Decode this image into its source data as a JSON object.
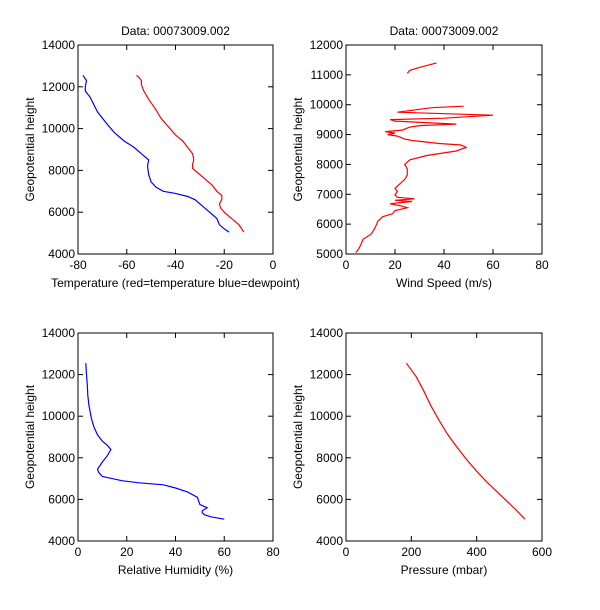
{
  "chart_data": [
    {
      "type": "line",
      "title": "Data: 00073009.002",
      "xlabel": "Temperature (red=temperature blue=dewpoint)",
      "ylabel": "Geopotential height",
      "xlim": [
        -80,
        0
      ],
      "ylim": [
        4000,
        14000
      ],
      "xticks": [
        -80,
        -60,
        -40,
        -20,
        0
      ],
      "yticks": [
        4000,
        6000,
        8000,
        10000,
        12000,
        14000
      ],
      "xtick_labels": [
        "-80",
        "-60",
        "-40",
        "-20",
        "0"
      ],
      "ytick_labels": [
        "4000",
        "6000",
        "8000",
        "10000",
        "12000",
        "14000"
      ],
      "series": [
        {
          "name": "temperature",
          "color": "#ff0000",
          "points": [
            [
              -12,
              5050
            ],
            [
              -12.5,
              5150
            ],
            [
              -14,
              5400
            ],
            [
              -16,
              5600
            ],
            [
              -18,
              5800
            ],
            [
              -20,
              6000
            ],
            [
              -21.5,
              6200
            ],
            [
              -22,
              6400
            ],
            [
              -21,
              6600
            ],
            [
              -21,
              6800
            ],
            [
              -23,
              7000
            ],
            [
              -25,
              7300
            ],
            [
              -28,
              7600
            ],
            [
              -31,
              7900
            ],
            [
              -33,
              8100
            ],
            [
              -33,
              8300
            ],
            [
              -32.5,
              8500
            ],
            [
              -33,
              8800
            ],
            [
              -35,
              9100
            ],
            [
              -37,
              9400
            ],
            [
              -40,
              9700
            ],
            [
              -43,
              10100
            ],
            [
              -46,
              10500
            ],
            [
              -48,
              10900
            ],
            [
              -51,
              11400
            ],
            [
              -53,
              11800
            ],
            [
              -54,
              12100
            ],
            [
              -54,
              12300
            ],
            [
              -55,
              12450
            ],
            [
              -56,
              12550
            ]
          ]
        },
        {
          "name": "dewpoint",
          "color": "#0000ff",
          "points": [
            [
              -18,
              5050
            ],
            [
              -20,
              5200
            ],
            [
              -22,
              5400
            ],
            [
              -23,
              5700
            ],
            [
              -26,
              6000
            ],
            [
              -29,
              6300
            ],
            [
              -32,
              6600
            ],
            [
              -35,
              6750
            ],
            [
              -40,
              6900
            ],
            [
              -45,
              7000
            ],
            [
              -48,
              7200
            ],
            [
              -50,
              7450
            ],
            [
              -51,
              7800
            ],
            [
              -51.5,
              8200
            ],
            [
              -51,
              8500
            ],
            [
              -53,
              8700
            ],
            [
              -57,
              9100
            ],
            [
              -61,
              9400
            ],
            [
              -65,
              9800
            ],
            [
              -68,
              10200
            ],
            [
              -72,
              10800
            ],
            [
              -75,
              11500
            ],
            [
              -77,
              11800
            ],
            [
              -77,
              12000
            ],
            [
              -76.5,
              12300
            ],
            [
              -78,
              12550
            ]
          ]
        }
      ]
    },
    {
      "type": "line",
      "title": "Data: 00073009.002",
      "xlabel": "Wind Speed (m/s)",
      "ylabel": "Geopotential height",
      "xlim": [
        0,
        80
      ],
      "ylim": [
        5000,
        12000
      ],
      "xticks": [
        0,
        20,
        40,
        60,
        80
      ],
      "yticks": [
        5000,
        6000,
        7000,
        8000,
        9000,
        10000,
        11000,
        12000
      ],
      "xtick_labels": [
        "0",
        "20",
        "40",
        "60",
        "80"
      ],
      "ytick_labels": [
        "5000",
        "6000",
        "7000",
        "8000",
        "9000",
        "10000",
        "11000",
        "12000"
      ],
      "series": [
        {
          "name": "wind speed",
          "color": "#ff0000",
          "points": [
            [
              4,
              5050
            ],
            [
              5,
              5150
            ],
            [
              6,
              5300
            ],
            [
              7,
              5500
            ],
            [
              10,
              5650
            ],
            [
              11,
              5750
            ],
            [
              12,
              5900
            ],
            [
              13,
              6100
            ],
            [
              15,
              6250
            ],
            [
              19,
              6350
            ],
            [
              20,
              6450
            ],
            [
              25,
              6550
            ],
            [
              22,
              6620
            ],
            [
              18,
              6680
            ],
            [
              22,
              6720
            ],
            [
              27,
              6760
            ],
            [
              20,
              6800
            ],
            [
              28,
              6850
            ],
            [
              21,
              6900
            ],
            [
              20,
              6980
            ],
            [
              21,
              7100
            ],
            [
              20,
              7200
            ],
            [
              22,
              7350
            ],
            [
              24,
              7500
            ],
            [
              25,
              7650
            ],
            [
              25,
              7850
            ],
            [
              24,
              8000
            ],
            [
              26,
              8150
            ],
            [
              33,
              8300
            ],
            [
              45,
              8450
            ],
            [
              49,
              8570
            ],
            [
              47,
              8650
            ],
            [
              38,
              8700
            ],
            [
              27,
              8800
            ],
            [
              24,
              8850
            ],
            [
              21,
              8950
            ],
            [
              17,
              9000
            ],
            [
              20,
              9050
            ],
            [
              16,
              9100
            ],
            [
              23,
              9150
            ],
            [
              26,
              9250
            ],
            [
              30,
              9300
            ],
            [
              45,
              9350
            ],
            [
              20,
              9450
            ],
            [
              18,
              9500
            ],
            [
              40,
              9550
            ],
            [
              60,
              9650
            ],
            [
              21,
              9750
            ],
            [
              35,
              9900
            ],
            [
              48,
              9950
            ]
          ]
        },
        {
          "name": "wind speed upper",
          "color": "#ff0000",
          "points": [
            [
              25,
              11050
            ],
            [
              26,
              11150
            ],
            [
              30,
              11250
            ],
            [
              37,
              11400
            ]
          ]
        }
      ]
    },
    {
      "type": "line",
      "title": "",
      "xlabel": "Relative Humidity (%)",
      "ylabel": "Geopotential height",
      "xlim": [
        0,
        80
      ],
      "ylim": [
        4000,
        14000
      ],
      "xticks": [
        0,
        20,
        40,
        60,
        80
      ],
      "yticks": [
        4000,
        6000,
        8000,
        10000,
        12000,
        14000
      ],
      "xtick_labels": [
        "0",
        "20",
        "40",
        "60",
        "80"
      ],
      "ytick_labels": [
        "4000",
        "6000",
        "8000",
        "10000",
        "12000",
        "14000"
      ],
      "series": [
        {
          "name": "relative humidity",
          "color": "#0000ff",
          "points": [
            [
              60,
              5050
            ],
            [
              55,
              5150
            ],
            [
              52,
              5250
            ],
            [
              51,
              5350
            ],
            [
              51,
              5450
            ],
            [
              53,
              5600
            ],
            [
              50,
              5750
            ],
            [
              49,
              6100
            ],
            [
              45,
              6350
            ],
            [
              40,
              6550
            ],
            [
              35,
              6700
            ],
            [
              25,
              6800
            ],
            [
              18,
              6900
            ],
            [
              14,
              7000
            ],
            [
              10,
              7100
            ],
            [
              8.5,
              7300
            ],
            [
              8,
              7450
            ],
            [
              10,
              7800
            ],
            [
              12,
              8100
            ],
            [
              13.5,
              8400
            ],
            [
              12,
              8600
            ],
            [
              10,
              8800
            ],
            [
              8,
              9100
            ],
            [
              6.5,
              9500
            ],
            [
              5.5,
              9900
            ],
            [
              4.5,
              10500
            ],
            [
              4,
              11000
            ],
            [
              3.8,
              11500
            ],
            [
              3.5,
              12000
            ],
            [
              3.2,
              12550
            ]
          ]
        }
      ]
    },
    {
      "type": "line",
      "title": "",
      "xlabel": "Pressure (mbar)",
      "ylabel": "Geopotential height",
      "xlim": [
        0,
        600
      ],
      "ylim": [
        4000,
        14000
      ],
      "xticks": [
        0,
        200,
        400,
        600
      ],
      "yticks": [
        4000,
        6000,
        8000,
        10000,
        12000,
        14000
      ],
      "xtick_labels": [
        "0",
        "200",
        "400",
        "600"
      ],
      "ytick_labels": [
        "4000",
        "6000",
        "8000",
        "10000",
        "12000",
        "14000"
      ],
      "series": [
        {
          "name": "pressure",
          "color": "#ff0000",
          "points": [
            [
              548,
              5050
            ],
            [
              520,
              5500
            ],
            [
              490,
              5950
            ],
            [
              460,
              6400
            ],
            [
              430,
              6850
            ],
            [
              400,
              7350
            ],
            [
              370,
              7900
            ],
            [
              340,
              8500
            ],
            [
              310,
              9150
            ],
            [
              285,
              9800
            ],
            [
              260,
              10500
            ],
            [
              237,
              11250
            ],
            [
              215,
              11900
            ],
            [
              185,
              12550
            ]
          ]
        }
      ]
    }
  ]
}
